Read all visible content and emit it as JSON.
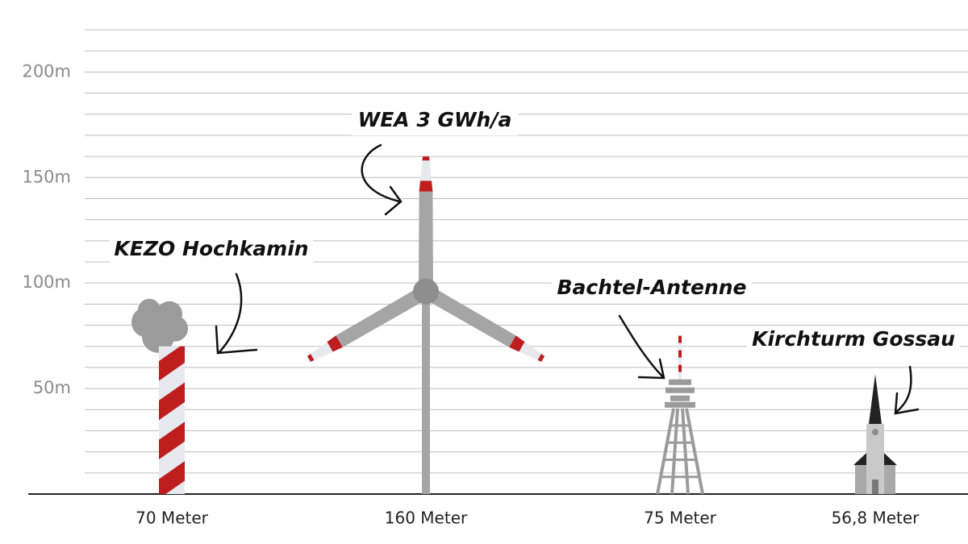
{
  "chart_data": {
    "type": "height-comparison",
    "categories": [
      "KEZO Hochkamin",
      "WEA 3 GWh/a",
      "Bachtel-Antenne",
      "Kirchturm Gossau"
    ],
    "values": [
      70,
      160,
      75,
      56.8
    ],
    "value_labels": [
      "70 Meter",
      "160 Meter",
      "75 Meter",
      "56,8 Meter"
    ],
    "ylim": [
      0,
      220
    ],
    "yticks": [
      {
        "value": 50,
        "label": "50m"
      },
      {
        "value": 100,
        "label": "100m"
      },
      {
        "value": 150,
        "label": "150m"
      },
      {
        "value": 200,
        "label": "200m"
      }
    ],
    "y_minor_ticks": [
      10,
      20,
      30,
      40,
      60,
      70,
      80,
      90,
      110,
      120,
      130,
      140,
      160,
      170,
      180,
      190,
      210,
      220
    ],
    "grid": true
  }
}
